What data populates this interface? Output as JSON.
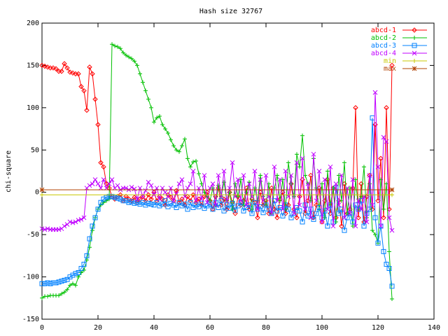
{
  "chart_data": {
    "type": "line",
    "title": "Hash size 32767",
    "y_label": "chi-square",
    "x": [
      0,
      1,
      2,
      3,
      4,
      5,
      6,
      7,
      8,
      9,
      10,
      11,
      12,
      13,
      14,
      15,
      16,
      17,
      18,
      19,
      20,
      21,
      22,
      23,
      24,
      25,
      26,
      27,
      28,
      29,
      30,
      31,
      32,
      33,
      34,
      35,
      36,
      37,
      38,
      39,
      40,
      41,
      42,
      43,
      44,
      45,
      46,
      47,
      48,
      49,
      50,
      51,
      52,
      53,
      54,
      55,
      56,
      57,
      58,
      59,
      60,
      61,
      62,
      63,
      64,
      65,
      66,
      67,
      68,
      69,
      70,
      71,
      72,
      73,
      74,
      75,
      76,
      77,
      78,
      79,
      80,
      81,
      82,
      83,
      84,
      85,
      86,
      87,
      88,
      89,
      90,
      91,
      92,
      93,
      94,
      95,
      96,
      97,
      98,
      99,
      100,
      101,
      102,
      103,
      104,
      105,
      106,
      107,
      108,
      109,
      110,
      111,
      112,
      113,
      114,
      115,
      116,
      117,
      118,
      119,
      120,
      121,
      122,
      123,
      124,
      125
    ],
    "series": [
      {
        "name": "abcd-1",
        "color": "#ff0000",
        "marker": "diamond",
        "values": [
          150,
          149,
          148,
          147,
          147,
          146,
          143,
          143,
          152,
          147,
          142,
          141,
          140,
          140,
          125,
          120,
          97,
          148,
          140,
          110,
          80,
          35,
          30,
          10,
          5,
          -5,
          -8,
          -5,
          -3,
          -10,
          -5,
          -8,
          -10,
          -6,
          -12,
          -8,
          -5,
          -10,
          -3,
          -8,
          0,
          -10,
          -5,
          -8,
          -15,
          -3,
          -6,
          -10,
          2,
          -12,
          -8,
          -15,
          -5,
          -10,
          -3,
          -12,
          -8,
          -15,
          -5,
          0,
          -10,
          -20,
          -5,
          5,
          -15,
          -8,
          -20,
          0,
          -12,
          -25,
          -5,
          -15,
          -10,
          5,
          -20,
          -8,
          -12,
          -30,
          0,
          -15,
          -10,
          -25,
          5,
          -20,
          -30,
          -8,
          0,
          -25,
          -15,
          10,
          -20,
          -30,
          -5,
          15,
          -25,
          -10,
          20,
          -30,
          -15,
          5,
          -35,
          -10,
          15,
          -25,
          5,
          -30,
          -10,
          -40,
          10,
          -25,
          -20,
          5,
          100,
          -30,
          10,
          -35,
          -5,
          20,
          -20,
          80,
          -10,
          40,
          -30,
          100,
          -20,
          150
        ]
      },
      {
        "name": "abcd-2",
        "color": "#00c000",
        "marker": "plus",
        "values": [
          -125,
          -123,
          -123,
          -122,
          -122,
          -122,
          -122,
          -120,
          -118,
          -115,
          -110,
          -108,
          -110,
          -100,
          -95,
          -92,
          -80,
          -65,
          -45,
          -30,
          -20,
          -15,
          -12,
          -10,
          -8,
          175,
          173,
          172,
          170,
          165,
          162,
          160,
          158,
          155,
          150,
          140,
          130,
          120,
          110,
          100,
          83,
          88,
          90,
          80,
          75,
          70,
          62,
          55,
          50,
          48,
          55,
          63,
          40,
          30,
          36,
          37,
          22,
          10,
          0,
          -5,
          -10,
          5,
          -15,
          8,
          -5,
          12,
          -10,
          0,
          -20,
          10,
          -5,
          15,
          -15,
          0,
          12,
          -20,
          5,
          -10,
          20,
          -5,
          -15,
          10,
          -25,
          5,
          20,
          -10,
          15,
          -20,
          35,
          10,
          -5,
          45,
          30,
          67,
          20,
          10,
          -10,
          40,
          5,
          -20,
          10,
          -30,
          25,
          -15,
          5,
          -35,
          20,
          -10,
          35,
          -25,
          5,
          -40,
          15,
          -20,
          -5,
          30,
          -30,
          10,
          -45,
          -50,
          -60,
          15,
          -20,
          10,
          -70,
          -126
        ]
      },
      {
        "name": "abcd-3",
        "color": "#0080ff",
        "marker": "square",
        "values": [
          -108,
          -108,
          -107,
          -108,
          -107,
          -107,
          -106,
          -105,
          -104,
          -103,
          -100,
          -98,
          -96,
          -95,
          -90,
          -85,
          -75,
          -55,
          -40,
          -30,
          -20,
          -12,
          -8,
          -6,
          -5,
          -5,
          -6,
          -7,
          -8,
          -10,
          -10,
          -12,
          -11,
          -13,
          -12,
          -14,
          -12,
          -15,
          -13,
          -14,
          -15,
          -12,
          -16,
          -14,
          -10,
          -17,
          -13,
          -15,
          -18,
          -12,
          -16,
          -14,
          -20,
          -12,
          -18,
          -15,
          -17,
          -13,
          -19,
          -16,
          -14,
          -20,
          -12,
          -18,
          -10,
          -22,
          -15,
          -19,
          -13,
          -21,
          -16,
          -12,
          -22,
          -18,
          -15,
          -25,
          -12,
          -20,
          -17,
          -24,
          -15,
          -20,
          -25,
          -10,
          -22,
          -18,
          -28,
          -15,
          -20,
          -30,
          -25,
          -18,
          -22,
          -35,
          -15,
          -28,
          -20,
          -32,
          -25,
          -18,
          -30,
          -22,
          -40,
          -15,
          -35,
          5,
          -25,
          -20,
          -45,
          -30,
          -25,
          -35,
          -15,
          -20,
          -10,
          -40,
          -25,
          -20,
          88,
          -30,
          -60,
          -40,
          -70,
          -85,
          -90,
          -111
        ]
      },
      {
        "name": "abcd-4",
        "color": "#c000ff",
        "marker": "cross",
        "values": [
          -43,
          -44,
          -43,
          -44,
          -44,
          -44,
          -44,
          -43,
          -40,
          -38,
          -35,
          -36,
          -35,
          -33,
          -32,
          -30,
          5,
          8,
          10,
          15,
          10,
          5,
          15,
          5,
          10,
          15,
          5,
          8,
          3,
          5,
          5,
          3,
          6,
          4,
          -8,
          5,
          -5,
          2,
          12,
          8,
          -3,
          5,
          -8,
          5,
          0,
          -5,
          5,
          -10,
          -2,
          10,
          15,
          -5,
          5,
          10,
          25,
          -10,
          5,
          -8,
          20,
          -12,
          5,
          10,
          -15,
          20,
          -5,
          25,
          -10,
          5,
          35,
          -5,
          15,
          -10,
          20,
          -15,
          10,
          -5,
          25,
          -20,
          15,
          -10,
          20,
          -5,
          -25,
          30,
          -10,
          15,
          -20,
          25,
          -5,
          20,
          -25,
          35,
          -15,
          40,
          -20,
          10,
          -30,
          45,
          -10,
          25,
          -35,
          15,
          -20,
          30,
          -40,
          10,
          -15,
          20,
          -30,
          5,
          -25,
          15,
          -40,
          -10,
          -20,
          -5,
          -35,
          20,
          -15,
          118,
          30,
          -40,
          65,
          60,
          -30,
          -45
        ]
      },
      {
        "name": "min",
        "color": "#c8c800",
        "marker": "plus",
        "x": [
          0,
          125
        ],
        "values": [
          -3,
          -3
        ]
      },
      {
        "name": "max",
        "color": "#b04000",
        "marker": "star",
        "x": [
          0,
          125
        ],
        "values": [
          3,
          3
        ]
      }
    ],
    "xlim": [
      0,
      140
    ],
    "xticks": [
      0,
      20,
      40,
      60,
      80,
      100,
      120,
      140
    ],
    "ylim": [
      -150,
      200
    ],
    "yticks": [
      -150,
      -100,
      -50,
      0,
      50,
      100,
      150,
      200
    ]
  }
}
